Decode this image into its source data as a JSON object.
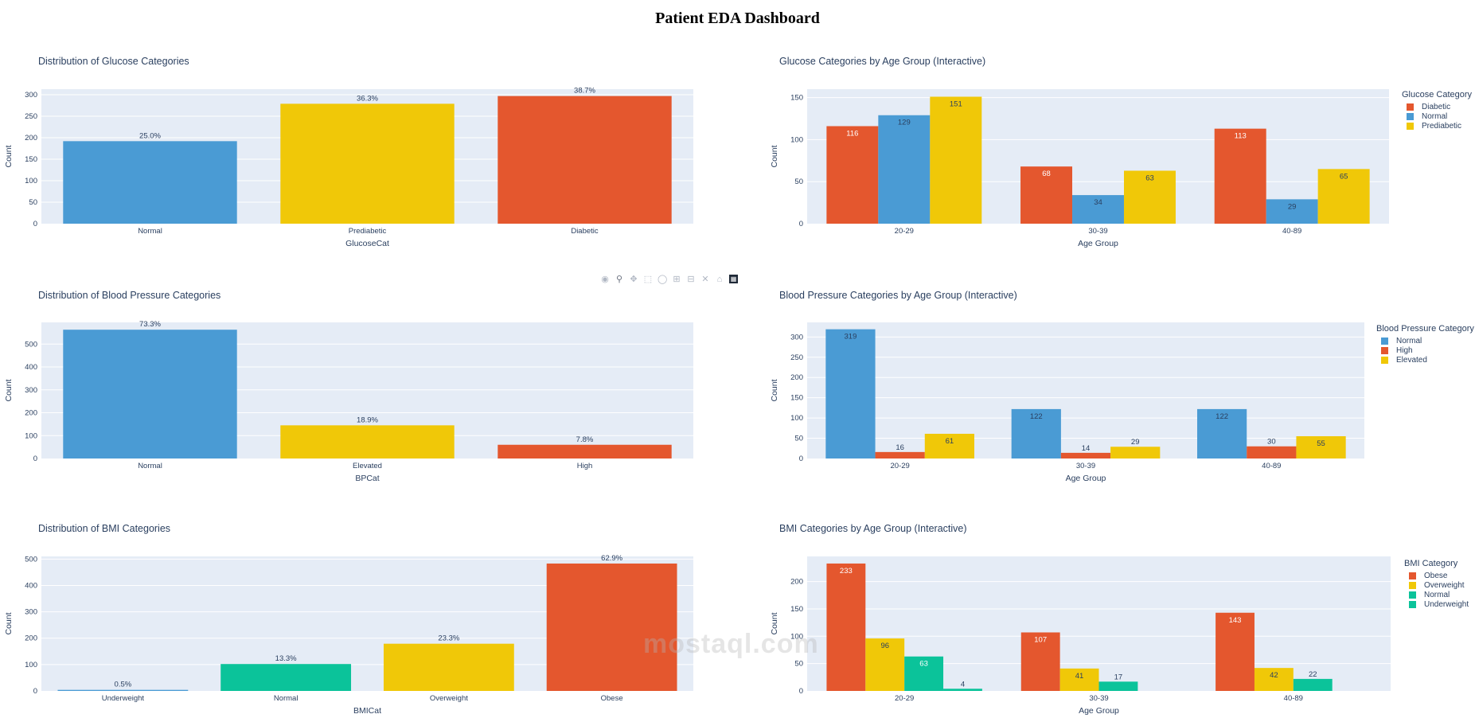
{
  "page_title": "Patient EDA Dashboard",
  "watermark": "mostaql.com",
  "modebar": [
    "camera-icon",
    "zoom-icon",
    "pan-icon",
    "box-select-icon",
    "lasso-icon",
    "zoom-in-icon",
    "zoom-out-icon",
    "autoscale-icon",
    "home-icon",
    "plotly-logo-icon"
  ],
  "colors": {
    "blue": "#4a9bd4",
    "yellow": "#f0c808",
    "orange": "#e4572e",
    "teal": "#0bc39a",
    "plot_bg": "#e5ecf6"
  },
  "chart_data": [
    {
      "id": "glucose-dist",
      "type": "bar",
      "title": "Distribution of Glucose Categories",
      "xlabel": "GlucoseCat",
      "ylabel": "Count",
      "ylim": [
        0,
        313
      ],
      "yticks": [
        0,
        50,
        100,
        150,
        200,
        250,
        300
      ],
      "categories": [
        "Normal",
        "Prediabetic",
        "Diabetic"
      ],
      "values": [
        192,
        279,
        297
      ],
      "labels": [
        "25.0%",
        "36.3%",
        "38.7%"
      ],
      "bar_colors": [
        "#4a9bd4",
        "#f0c808",
        "#e4572e"
      ]
    },
    {
      "id": "glucose-age",
      "type": "bar",
      "title": "Glucose Categories by Age Group (Interactive)",
      "xlabel": "Age Group",
      "ylabel": "Count",
      "ylim": [
        0,
        160
      ],
      "yticks": [
        0,
        50,
        100,
        150
      ],
      "categories": [
        "20-29",
        "30-39",
        "40-89"
      ],
      "legend_title": "Glucose Category",
      "series": [
        {
          "name": "Diabetic",
          "color": "#e4572e",
          "values": [
            116,
            68,
            113
          ]
        },
        {
          "name": "Normal",
          "color": "#4a9bd4",
          "values": [
            129,
            34,
            29
          ]
        },
        {
          "name": "Prediabetic",
          "color": "#f0c808",
          "values": [
            151,
            63,
            65
          ]
        }
      ]
    },
    {
      "id": "bp-dist",
      "type": "bar",
      "title": "Distribution of Blood Pressure Categories",
      "xlabel": "BPCat",
      "ylabel": "Count",
      "ylim": [
        0,
        595
      ],
      "yticks": [
        0,
        100,
        200,
        300,
        400,
        500
      ],
      "categories": [
        "Normal",
        "Elevated",
        "High"
      ],
      "values": [
        563,
        145,
        60
      ],
      "labels": [
        "73.3%",
        "18.9%",
        "7.8%"
      ],
      "bar_colors": [
        "#4a9bd4",
        "#f0c808",
        "#e4572e"
      ]
    },
    {
      "id": "bp-age",
      "type": "bar",
      "title": "Blood Pressure Categories by Age Group (Interactive)",
      "xlabel": "Age Group",
      "ylabel": "Count",
      "ylim": [
        0,
        336
      ],
      "yticks": [
        0,
        50,
        100,
        150,
        200,
        250,
        300
      ],
      "categories": [
        "20-29",
        "30-39",
        "40-89"
      ],
      "legend_title": "Blood Pressure Category",
      "series": [
        {
          "name": "Normal",
          "color": "#4a9bd4",
          "values": [
            319,
            122,
            122
          ]
        },
        {
          "name": "High",
          "color": "#e4572e",
          "values": [
            16,
            14,
            30
          ]
        },
        {
          "name": "Elevated",
          "color": "#f0c808",
          "values": [
            61,
            29,
            55
          ]
        }
      ]
    },
    {
      "id": "bmi-dist",
      "type": "bar",
      "title": "Distribution of BMI Categories",
      "xlabel": "BMICat",
      "ylabel": "Count",
      "ylim": [
        0,
        510
      ],
      "yticks": [
        0,
        100,
        200,
        300,
        400,
        500
      ],
      "categories": [
        "Underweight",
        "Normal",
        "Overweight",
        "Obese"
      ],
      "values": [
        4,
        102,
        179,
        483
      ],
      "labels": [
        "0.5%",
        "13.3%",
        "23.3%",
        "62.9%"
      ],
      "bar_colors": [
        "#4a9bd4",
        "#0bc39a",
        "#f0c808",
        "#e4572e"
      ]
    },
    {
      "id": "bmi-age",
      "type": "bar",
      "title": "BMI Categories by Age Group (Interactive)",
      "xlabel": "Age Group",
      "ylabel": "Count",
      "ylim": [
        0,
        246
      ],
      "yticks": [
        0,
        50,
        100,
        150,
        200
      ],
      "categories": [
        "20-29",
        "30-39",
        "40-89"
      ],
      "legend_title": "BMI Category",
      "series": [
        {
          "name": "Obese",
          "color": "#e4572e",
          "values": [
            233,
            107,
            143
          ]
        },
        {
          "name": "Overweight",
          "color": "#f0c808",
          "values": [
            96,
            41,
            42
          ]
        },
        {
          "name": "Normal",
          "color": "#0bc39a",
          "values": [
            63,
            17,
            22
          ]
        },
        {
          "name": "Underweight",
          "color": "#0bc39a",
          "values": [
            4,
            0,
            0
          ]
        }
      ]
    }
  ]
}
